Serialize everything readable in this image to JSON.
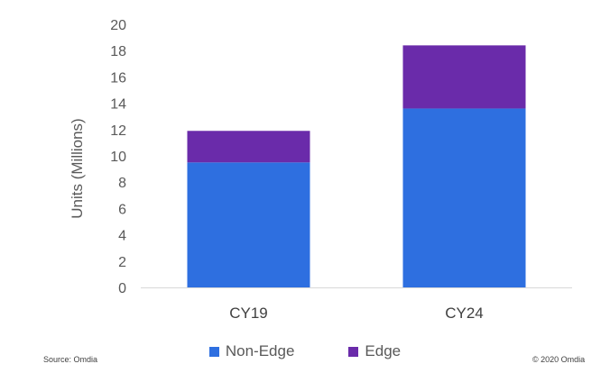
{
  "chart_data": {
    "type": "bar",
    "stacked": true,
    "title": "",
    "xlabel": "",
    "ylabel": "Units (Millions)",
    "ylim": [
      0,
      20
    ],
    "yticks": [
      0,
      2,
      4,
      6,
      8,
      10,
      12,
      14,
      16,
      18,
      20
    ],
    "categories": [
      "CY19",
      "CY24"
    ],
    "series": [
      {
        "name": "Non-Edge",
        "values": [
          9.5,
          13.6
        ],
        "color": "#2E6FE0"
      },
      {
        "name": "Edge",
        "values": [
          2.4,
          4.8
        ],
        "color": "#6A2BAA"
      }
    ],
    "grid": false,
    "legend_position": "bottom"
  },
  "footer": {
    "source": "Source: Omdia",
    "copyright": "© 2020 Omdia"
  }
}
